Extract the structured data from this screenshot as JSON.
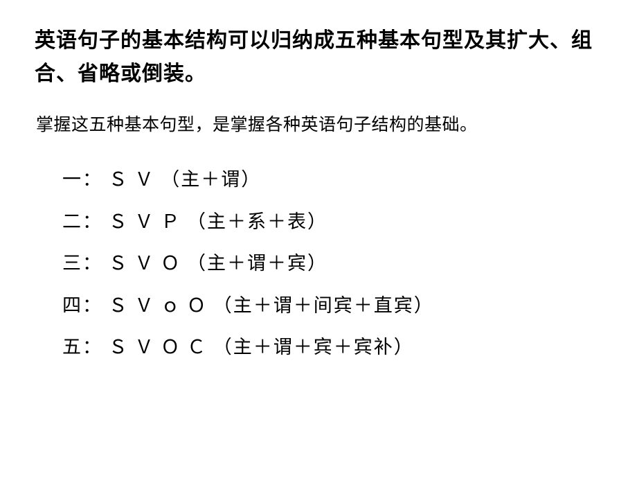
{
  "heading": "英语句子的基本结构可以归纳成五种基本句型及其扩大、组合、省略或倒装。",
  "subheading": "掌握这五种基本句型，是掌握各种英语句子结构的基础。",
  "patterns": [
    {
      "ordinal": "一：",
      "formula": "Ｓ Ｖ ",
      "description": "（主＋谓）"
    },
    {
      "ordinal": "二：",
      "formula": "Ｓ Ｖ Ｐ ",
      "description": "（主＋系＋表）"
    },
    {
      "ordinal": "三：",
      "formula": "Ｓ Ｖ Ｏ ",
      "description": "（主＋谓＋宾）"
    },
    {
      "ordinal": "四：",
      "formula": "Ｓ Ｖ ｏ Ｏ ",
      "description": "（主＋谓＋间宾＋直宾）"
    },
    {
      "ordinal": "五：",
      "formula": "Ｓ Ｖ Ｏ Ｃ ",
      "description": "（主＋谓＋宾＋宾补）"
    }
  ],
  "colors": {
    "background": "#ffffff",
    "text": "#000000"
  },
  "typography": {
    "heading_fontsize": 30,
    "subheading_fontsize": 25,
    "pattern_fontsize": 27,
    "font_family": "SimSun"
  }
}
